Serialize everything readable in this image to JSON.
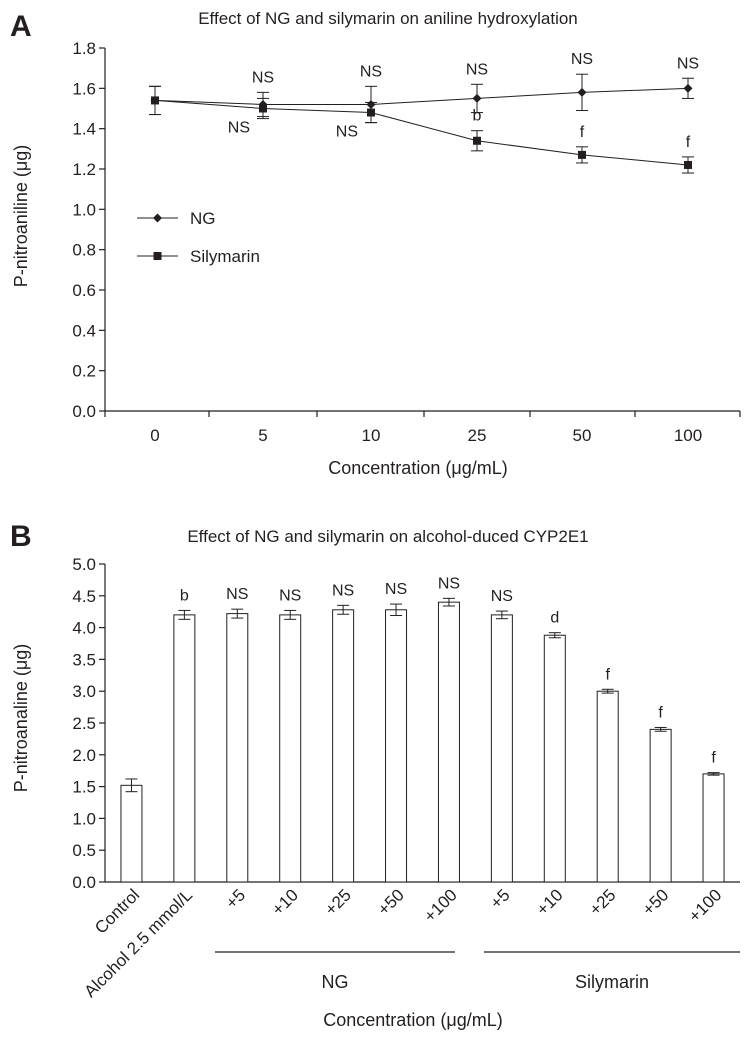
{
  "chart_data": [
    {
      "type": "line",
      "panel": "A",
      "title": "Effect of NG and silymarin on aniline hydroxylation",
      "xlabel": "Concentration (μg/mL)",
      "ylabel": "P-nitroaniline (μg)",
      "categories": [
        "0",
        "5",
        "10",
        "25",
        "50",
        "100"
      ],
      "ylim": [
        0,
        1.8
      ],
      "ystep": 0.2,
      "yticks": [
        "0.0",
        "0.2",
        "0.4",
        "0.6",
        "0.8",
        "1.0",
        "1.2",
        "1.4",
        "1.6",
        "1.8"
      ],
      "legend_position": "left-middle",
      "series": [
        {
          "name": "NG",
          "marker": "diamond",
          "values": [
            1.54,
            1.52,
            1.52,
            1.55,
            1.58,
            1.6
          ],
          "errors": [
            0.07,
            0.06,
            0.09,
            0.07,
            0.09,
            0.05
          ],
          "labels": [
            "",
            "NS",
            "NS",
            "NS",
            "NS",
            "NS"
          ],
          "label_side": "above"
        },
        {
          "name": "Silymarin",
          "marker": "square",
          "values": [
            1.54,
            1.5,
            1.48,
            1.34,
            1.27,
            1.22
          ],
          "errors": [
            0.07,
            0.05,
            0.05,
            0.05,
            0.04,
            0.04
          ],
          "labels": [
            "",
            "NS",
            "NS",
            "b",
            "f",
            "f"
          ],
          "label_side": "mixed"
        }
      ]
    },
    {
      "type": "bar",
      "panel": "B",
      "title": "Effect of NG and silymarin on alcohol-duced CYP2E1",
      "xlabel": "Concentration (μg/mL)",
      "ylabel": "P-nitroanaline (μg)",
      "categories": [
        "Control",
        "Alcohol 2.5 mmol/L",
        "+5",
        "+10",
        "+25",
        "+50",
        "+100",
        "+5",
        "+10",
        "+25",
        "+50",
        "+100"
      ],
      "values": [
        1.52,
        4.2,
        4.22,
        4.2,
        4.28,
        4.28,
        4.4,
        4.2,
        3.88,
        3.0,
        2.4,
        1.7
      ],
      "errors": [
        0.1,
        0.07,
        0.07,
        0.07,
        0.07,
        0.09,
        0.06,
        0.06,
        0.04,
        0.03,
        0.03,
        0.02
      ],
      "labels": [
        "",
        "b",
        "NS",
        "NS",
        "NS",
        "NS",
        "NS",
        "NS",
        "d",
        "f",
        "f",
        "f"
      ],
      "ylim": [
        0,
        5.0
      ],
      "ystep": 0.5,
      "yticks": [
        "0.0",
        "0.5",
        "1.0",
        "1.5",
        "2.0",
        "2.5",
        "3.0",
        "3.5",
        "4.0",
        "4.5",
        "5.0"
      ],
      "groups": [
        {
          "name": "NG",
          "from": 2,
          "to": 6
        },
        {
          "name": "Silymarin",
          "from": 7,
          "to": 11
        }
      ]
    }
  ]
}
